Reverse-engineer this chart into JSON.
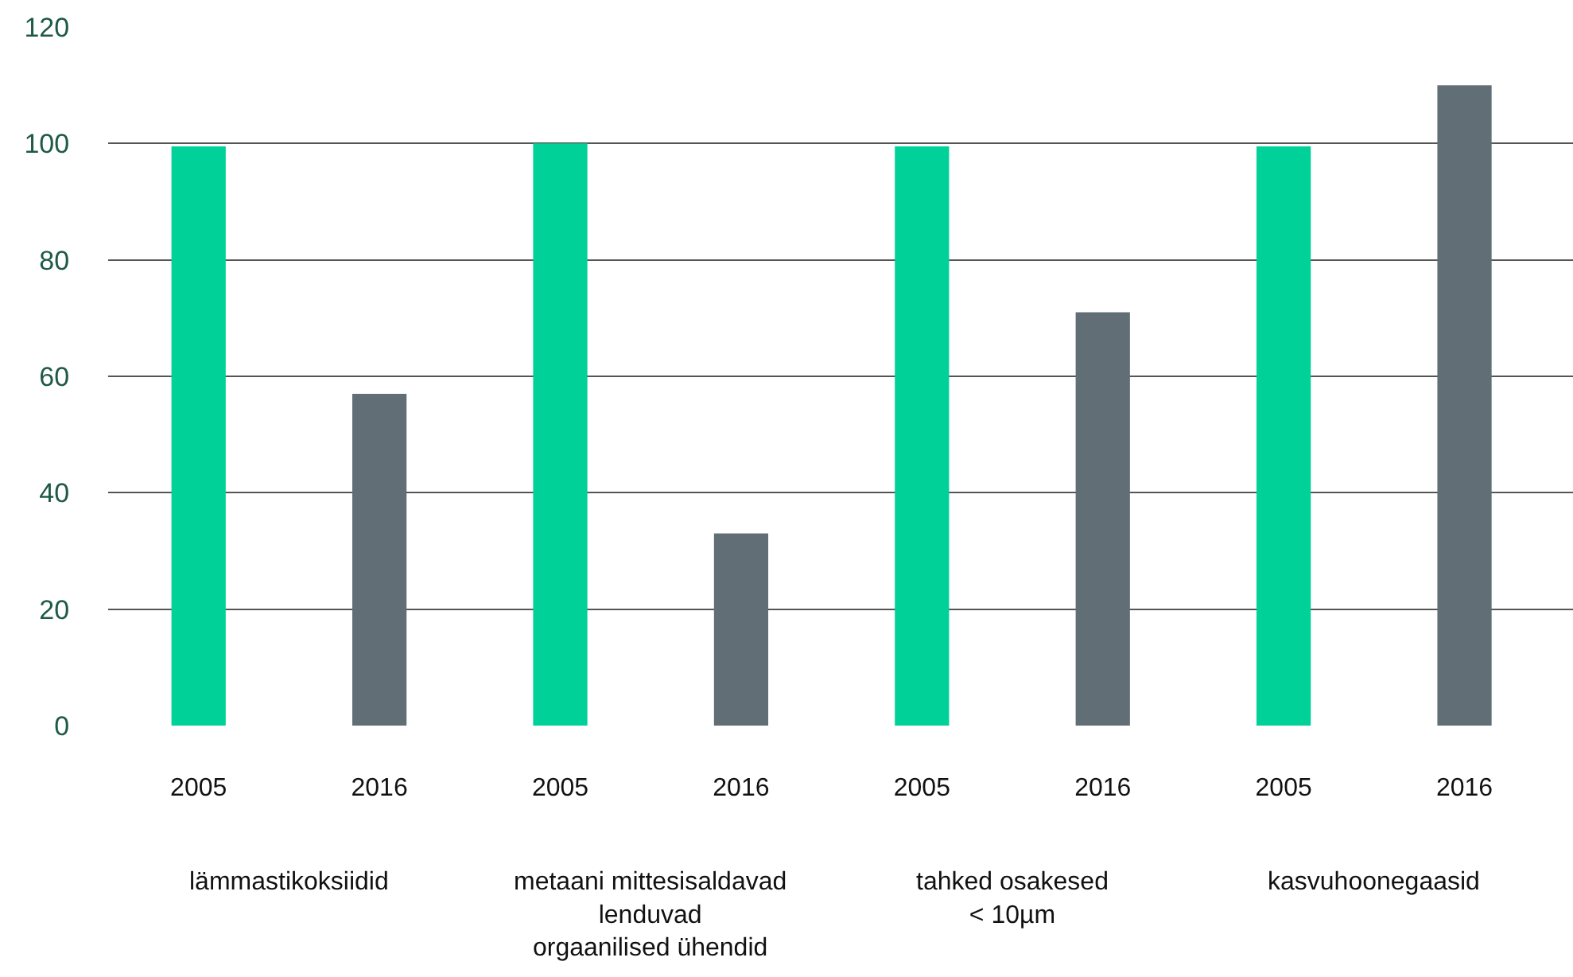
{
  "chart_data": {
    "type": "bar",
    "categories": [
      "2005",
      "2016",
      "2005",
      "2016",
      "2005",
      "2016",
      "2005",
      "2016"
    ],
    "values": [
      99.5,
      57,
      100,
      33,
      99.5,
      71,
      99.5,
      110
    ],
    "colors": [
      "#00d198",
      "#616e75",
      "#00d198",
      "#616e75",
      "#00d198",
      "#616e75",
      "#00d198",
      "#616e75"
    ],
    "ylim": [
      0,
      120
    ],
    "yticks": [
      0,
      20,
      40,
      60,
      80,
      100,
      120
    ],
    "grid": "y",
    "annotations": [
      "lämmastikoksiidid",
      "metaani mittesisaldavad\nlenduvad\norgaanilised ühendid",
      "tahked osakesed\n< 10µm",
      "kasvuhoonegaasid"
    ]
  }
}
